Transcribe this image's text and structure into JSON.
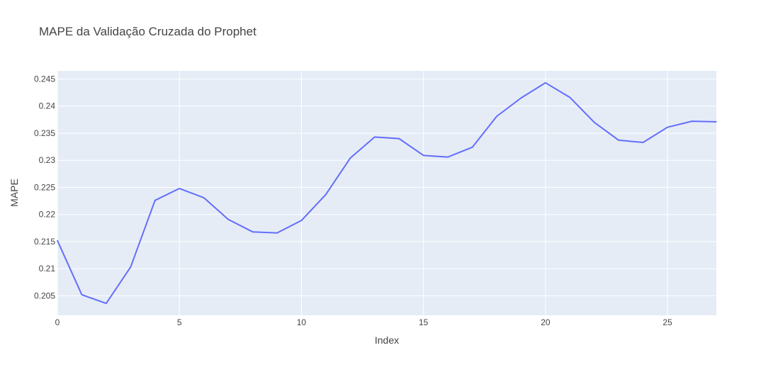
{
  "chart_data": {
    "type": "line",
    "title": "MAPE da Validação Cruzada do Prophet",
    "xlabel": "Index",
    "ylabel": "MAPE",
    "xlim": [
      0,
      27
    ],
    "ylim": [
      0.2014,
      0.2465
    ],
    "x_ticks": [
      0,
      5,
      10,
      15,
      20,
      25
    ],
    "y_ticks": [
      0.205,
      0.21,
      0.215,
      0.22,
      0.225,
      0.23,
      0.235,
      0.24,
      0.245
    ],
    "x_tick_labels": [
      "0",
      "5",
      "10",
      "15",
      "20",
      "25"
    ],
    "y_tick_labels": [
      "0.205",
      "0.21",
      "0.215",
      "0.22",
      "0.225",
      "0.23",
      "0.235",
      "0.24",
      "0.245"
    ],
    "grid": true,
    "series": [
      {
        "color": "#636efa",
        "x": [
          0,
          1,
          2,
          3,
          4,
          5,
          6,
          7,
          8,
          9,
          10,
          11,
          12,
          13,
          14,
          15,
          16,
          17,
          18,
          19,
          20,
          21,
          22,
          23,
          24,
          25,
          26,
          27
        ],
        "y": [
          0.2152,
          0.2052,
          0.2036,
          0.2103,
          0.2226,
          0.2248,
          0.2231,
          0.2191,
          0.2168,
          0.2166,
          0.2189,
          0.2237,
          0.2304,
          0.2343,
          0.234,
          0.2309,
          0.2306,
          0.2324,
          0.2381,
          0.2415,
          0.2443,
          0.2416,
          0.237,
          0.2337,
          0.2333,
          0.2361,
          0.2372,
          0.2371
        ]
      }
    ]
  },
  "colors": {
    "plot_background": "#e5ecf6",
    "grid": "#ffffff",
    "text": "#444444"
  }
}
